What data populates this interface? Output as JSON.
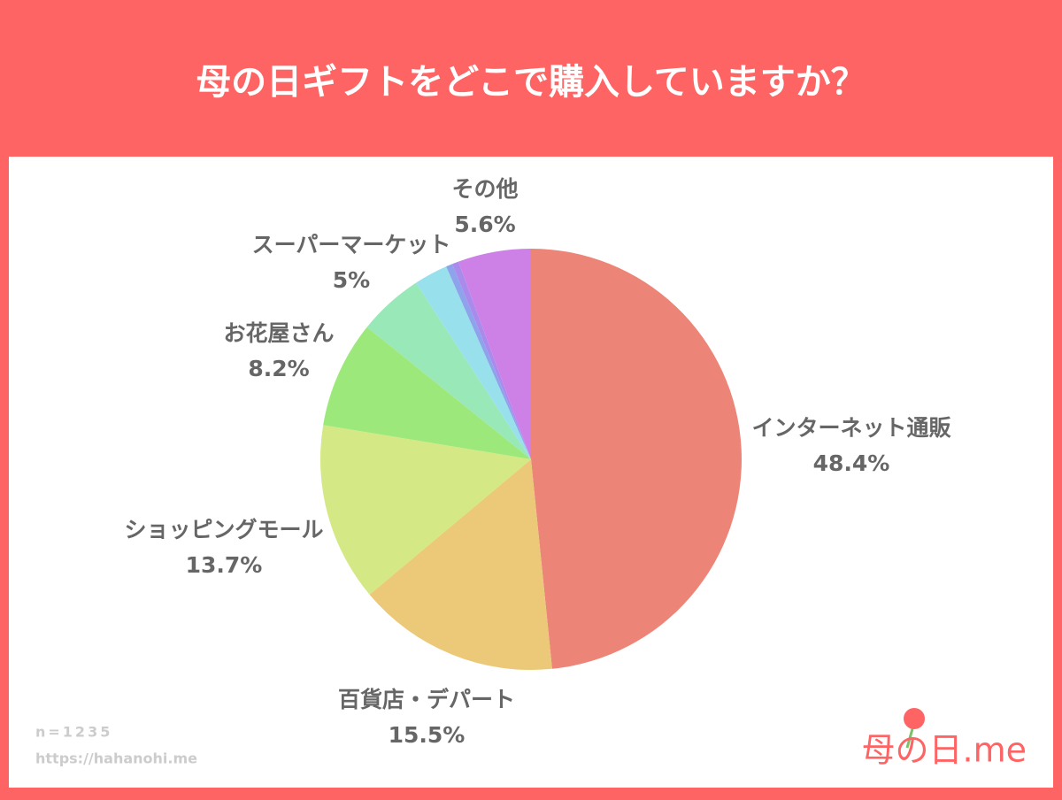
{
  "chart_data": {
    "type": "pie",
    "title": "母の日ギフトをどこで購入していますか？",
    "categories": [
      "インターネット通販",
      "百貨店・デパート",
      "ショッピングモール",
      "お花屋さん",
      "スーパーマーケット",
      null,
      null,
      null,
      "その他"
    ],
    "values": [
      48.4,
      15.5,
      13.7,
      8.2,
      5,
      2.6,
      0.5,
      0.5,
      5.6
    ],
    "value_labels": [
      "48.4%",
      "15.5%",
      "13.7%",
      "8.2%",
      "5%",
      null,
      null,
      null,
      "5.6%"
    ],
    "colors": [
      "#ec8578",
      "#ecc978",
      "#d4e985",
      "#9de87b",
      "#98e8b8",
      "#98e0ec",
      "#8fa2ec",
      "#a98bec",
      "#cd80e6"
    ],
    "sample": "n=1235",
    "source": "https://hahanohi.me",
    "logo": "母の日.me"
  }
}
